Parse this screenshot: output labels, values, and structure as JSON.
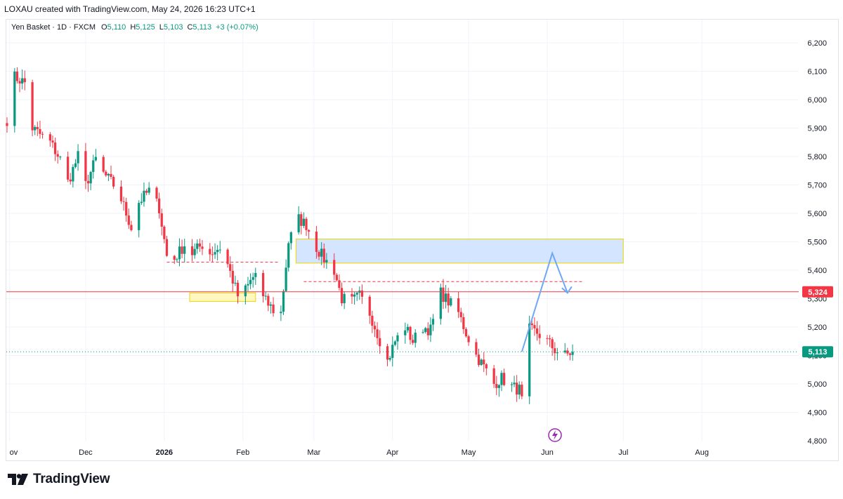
{
  "header": {
    "attribution": "LOXAU created with TradingView.com, May 24, 2026 16:23 UTC+1"
  },
  "legend": {
    "symbol": "Yen Basket · 1D · FXCM",
    "open_label": "O",
    "open_value": "5,110",
    "high_label": "H",
    "high_value": "5,125",
    "low_label": "L",
    "low_value": "5,103",
    "close_label": "C",
    "close_value": "5,113",
    "change": "+3 (+0.07%)"
  },
  "colors": {
    "up": "#089981",
    "down": "#f23645",
    "grid": "#f0f3fa",
    "zone_blue": "#cfe2ff",
    "zone_border": "#f2d500",
    "zone_yellow": "#fff7c0",
    "price_line": "#f23645",
    "last_price": "#089981",
    "projection": "#6ea8f4"
  },
  "brand": {
    "name": "TradingView",
    "icon": "tradingview-logo-icon"
  },
  "chart_data": {
    "type": "candlestick",
    "y_ticks": [
      "6,200",
      "6,100",
      "6,000",
      "5,900",
      "5,800",
      "5,700",
      "5,600",
      "5,500",
      "5,400",
      "5,300",
      "5,200",
      "5,100",
      "5,000",
      "4,900",
      "4,800"
    ],
    "y_tick_values": [
      6200,
      6100,
      6000,
      5900,
      5800,
      5700,
      5600,
      5500,
      5400,
      5300,
      5200,
      5100,
      5000,
      4900,
      4800
    ],
    "ylim": [
      4800,
      6200
    ],
    "x_ticks": [
      {
        "label": "ov",
        "date": "2025-11-01"
      },
      {
        "label": "Dec",
        "date": "2025-12-01"
      },
      {
        "label": "2026",
        "date": "2026-01-01"
      },
      {
        "label": "Feb",
        "date": "2026-02-01"
      },
      {
        "label": "Mar",
        "date": "2026-03-01"
      },
      {
        "label": "Apr",
        "date": "2026-04-01"
      },
      {
        "label": "May",
        "date": "2026-05-01"
      },
      {
        "label": "Jun",
        "date": "2026-06-01"
      },
      {
        "label": "Jul",
        "date": "2026-07-01"
      },
      {
        "label": "Aug",
        "date": "2026-08-01"
      }
    ],
    "xlim": [
      "2025-10-31",
      "2026-08-22"
    ],
    "price_line": {
      "value": 5324,
      "label": "5,324"
    },
    "last_price": {
      "value": 5113,
      "label": "5,113"
    },
    "close_path": [
      [
        "2025-10-31",
        5930
      ],
      [
        "2025-11-03",
        6080
      ],
      [
        "2025-11-07",
        6060
      ],
      [
        "2025-11-10",
        5900
      ],
      [
        "2025-11-14",
        5870
      ],
      [
        "2025-11-17",
        5850
      ],
      [
        "2025-11-21",
        5790
      ],
      [
        "2025-11-24",
        5710
      ],
      [
        "2025-11-28",
        5800
      ],
      [
        "2025-12-01",
        5700
      ],
      [
        "2025-12-05",
        5790
      ],
      [
        "2025-12-08",
        5740
      ],
      [
        "2025-12-12",
        5700
      ],
      [
        "2025-12-15",
        5650
      ],
      [
        "2025-12-19",
        5550
      ],
      [
        "2025-12-22",
        5640
      ],
      [
        "2025-12-26",
        5680
      ],
      [
        "2025-12-30",
        5620
      ],
      [
        "2026-01-02",
        5450
      ],
      [
        "2026-01-05",
        5440
      ],
      [
        "2026-01-09",
        5490
      ],
      [
        "2026-01-12",
        5460
      ],
      [
        "2026-01-16",
        5490
      ],
      [
        "2026-01-19",
        5460
      ],
      [
        "2026-01-23",
        5480
      ],
      [
        "2026-01-26",
        5420
      ],
      [
        "2026-01-30",
        5310
      ],
      [
        "2026-02-02",
        5330
      ],
      [
        "2026-02-06",
        5390
      ],
      [
        "2026-02-09",
        5300
      ],
      [
        "2026-02-13",
        5260
      ],
      [
        "2026-02-16",
        5250
      ],
      [
        "2026-02-19",
        5500
      ],
      [
        "2026-02-23",
        5580
      ],
      [
        "2026-02-26",
        5560
      ],
      [
        "2026-03-02",
        5480
      ],
      [
        "2026-03-05",
        5440
      ],
      [
        "2026-03-09",
        5400
      ],
      [
        "2026-03-12",
        5300
      ],
      [
        "2026-03-16",
        5290
      ],
      [
        "2026-03-19",
        5310
      ],
      [
        "2026-03-23",
        5250
      ],
      [
        "2026-03-26",
        5180
      ],
      [
        "2026-03-30",
        5080
      ],
      [
        "2026-04-02",
        5150
      ],
      [
        "2026-04-06",
        5200
      ],
      [
        "2026-04-09",
        5150
      ],
      [
        "2026-04-13",
        5200
      ],
      [
        "2026-04-16",
        5190
      ],
      [
        "2026-04-20",
        5320
      ],
      [
        "2026-04-23",
        5290
      ],
      [
        "2026-04-27",
        5250
      ],
      [
        "2026-04-30",
        5180
      ],
      [
        "2026-05-04",
        5100
      ],
      [
        "2026-05-07",
        5060
      ],
      [
        "2026-05-11",
        5000
      ],
      [
        "2026-05-14",
        5020
      ],
      [
        "2026-05-18",
        4990
      ],
      [
        "2026-05-21",
        4980
      ],
      [
        "2026-05-22",
        4940
      ],
      [
        "2026-05-25",
        5190
      ],
      [
        "2026-05-28",
        5180
      ],
      [
        "2026-06-01",
        5150
      ],
      [
        "2026-06-04",
        5120
      ],
      [
        "2026-06-08",
        5100
      ],
      [
        "2026-06-11",
        5113
      ]
    ],
    "zones": [
      {
        "name": "supply-zone",
        "x0": "2026-02-22",
        "x1": "2026-07-01",
        "y0": 5425,
        "y1": 5510,
        "color": "blue"
      },
      {
        "name": "demand-zone",
        "x0": "2026-01-11",
        "x1": "2026-02-06",
        "y0": 5290,
        "y1": 5320,
        "color": "yellow"
      }
    ],
    "dashed_lines": [
      {
        "x0": "2026-01-02",
        "x1": "2026-02-15",
        "y": 5428
      },
      {
        "x0": "2026-02-25",
        "x1": "2026-06-15",
        "y": 5360
      }
    ],
    "projection": [
      [
        "2026-05-22",
        5113
      ],
      [
        "2026-06-03",
        5460
      ],
      [
        "2026-06-09",
        5320
      ]
    ]
  }
}
